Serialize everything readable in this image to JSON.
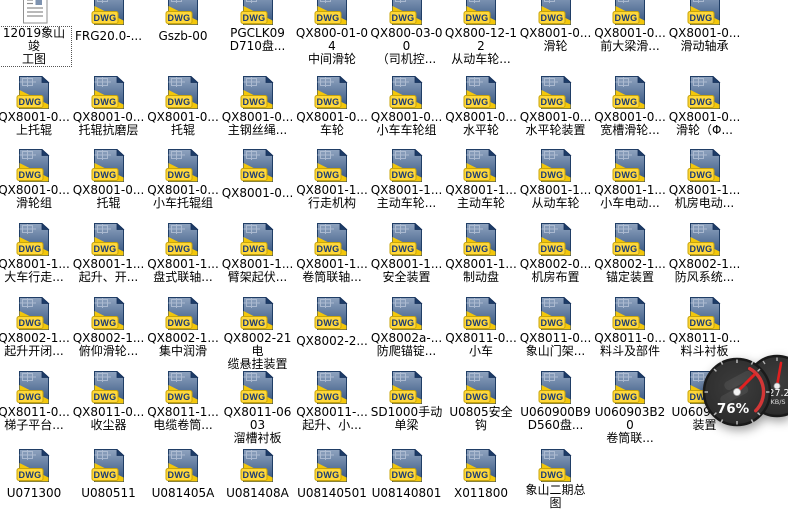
{
  "desktop": {
    "background_color": "#ffffff"
  },
  "icons": {
    "dwg_badge_text": "DWG",
    "dwg_blue_top": "#8fa3bf",
    "dwg_blue_bottom": "#33537f",
    "dwg_yellow": "#f3c70a",
    "dwg_badge_yellow": "#ffd83a",
    "dwg_badge_text_color": "#1b3a74"
  },
  "gauge_widget": {
    "main_percent": "76%",
    "secondary_value": "27.2",
    "secondary_unit": "KB/S",
    "body_color": "#323232",
    "needle_color": "#e02020",
    "arc_color": "#d43636"
  },
  "files": [
    {
      "label": "12019象山竣\n工图",
      "icon": "doc",
      "selected": true
    },
    {
      "label": "FRG20.0-...",
      "icon": "dwg"
    },
    {
      "label": "Gszb-00",
      "icon": "dwg"
    },
    {
      "label": "PGCLK09\nD710盘...",
      "icon": "dwg"
    },
    {
      "label": "QX800-01-04\n中间滑轮",
      "icon": "dwg"
    },
    {
      "label": "QX800-03-00\n（司机控...",
      "icon": "dwg"
    },
    {
      "label": "QX800-12-12\n从动车轮...",
      "icon": "dwg"
    },
    {
      "label": "QX8001-0...\n滑轮",
      "icon": "dwg"
    },
    {
      "label": "QX8001-0...\n前大梁滑...",
      "icon": "dwg"
    },
    {
      "label": "QX8001-0...\n滑动轴承",
      "icon": "dwg"
    },
    {
      "label": "QX8001-0...\n上托辊",
      "icon": "dwg"
    },
    {
      "label": "QX8001-0...\n托辊抗磨层",
      "icon": "dwg"
    },
    {
      "label": "QX8001-0...\n托辊",
      "icon": "dwg"
    },
    {
      "label": "QX8001-0...\n主钢丝绳...",
      "icon": "dwg"
    },
    {
      "label": "QX8001-0...\n车轮",
      "icon": "dwg"
    },
    {
      "label": "QX8001-0...\n小车车轮组",
      "icon": "dwg"
    },
    {
      "label": "QX8001-0...\n水平轮",
      "icon": "dwg"
    },
    {
      "label": "QX8001-0...\n水平轮装置",
      "icon": "dwg"
    },
    {
      "label": "QX8001-0...\n宽槽滑轮...",
      "icon": "dwg"
    },
    {
      "label": "QX8001-0...\n滑轮（Φ...",
      "icon": "dwg"
    },
    {
      "label": "QX8001-0...\n滑轮组",
      "icon": "dwg"
    },
    {
      "label": "QX8001-0...\n托辊",
      "icon": "dwg"
    },
    {
      "label": "QX8001-0...\n小车托辊组",
      "icon": "dwg"
    },
    {
      "label": "QX8001-0...",
      "icon": "dwg"
    },
    {
      "label": "QX8001-1...\n行走机构",
      "icon": "dwg"
    },
    {
      "label": "QX8001-1...\n主动车轮...",
      "icon": "dwg"
    },
    {
      "label": "QX8001-1...\n主动车轮",
      "icon": "dwg"
    },
    {
      "label": "QX8001-1...\n从动车轮",
      "icon": "dwg"
    },
    {
      "label": "QX8001-1...\n小车电动...",
      "icon": "dwg"
    },
    {
      "label": "QX8001-1...\n机房电动...",
      "icon": "dwg"
    },
    {
      "label": "QX8001-1...\n大车行走...",
      "icon": "dwg"
    },
    {
      "label": "QX8001-1...\n起升、开...",
      "icon": "dwg"
    },
    {
      "label": "QX8001-1...\n盘式联轴...",
      "icon": "dwg"
    },
    {
      "label": "QX8001-1...\n臂架起伏...",
      "icon": "dwg"
    },
    {
      "label": "QX8001-1...\n卷筒联轴...",
      "icon": "dwg"
    },
    {
      "label": "QX8001-1...\n安全装置",
      "icon": "dwg"
    },
    {
      "label": "QX8001-1...\n制动盘",
      "icon": "dwg"
    },
    {
      "label": "QX8002-0...\n机房布置",
      "icon": "dwg"
    },
    {
      "label": "QX8002-1...\n锚定装置",
      "icon": "dwg"
    },
    {
      "label": "QX8002-1...\n防风系统...",
      "icon": "dwg"
    },
    {
      "label": "QX8002-1...\n起升开闭...",
      "icon": "dwg"
    },
    {
      "label": "QX8002-1...\n俯仰滑轮...",
      "icon": "dwg"
    },
    {
      "label": "QX8002-1...\n集中润滑",
      "icon": "dwg"
    },
    {
      "label": "QX8002-21电\n缆悬挂装置",
      "icon": "dwg"
    },
    {
      "label": "QX8002-2...",
      "icon": "dwg"
    },
    {
      "label": "QX8002a-...\n防爬锚锭...",
      "icon": "dwg"
    },
    {
      "label": "QX8011-0...\n小车",
      "icon": "dwg"
    },
    {
      "label": "QX8011-0...\n象山门架...",
      "icon": "dwg"
    },
    {
      "label": "QX8011-0...\n料斗及部件",
      "icon": "dwg"
    },
    {
      "label": "QX8011-0...\n料斗衬板",
      "icon": "dwg"
    },
    {
      "label": "QX8011-0...\n梯子平台...",
      "icon": "dwg"
    },
    {
      "label": "QX8011-0...\n收尘器",
      "icon": "dwg"
    },
    {
      "label": "QX8011-1...\n电缆卷筒...",
      "icon": "dwg"
    },
    {
      "label": "QX8011-0603\n溜槽衬板",
      "icon": "dwg"
    },
    {
      "label": "QX80011-...\n起升、小...",
      "icon": "dwg"
    },
    {
      "label": "SD1000手动\n单梁",
      "icon": "dwg"
    },
    {
      "label": "U0805安全钩",
      "icon": "dwg"
    },
    {
      "label": "U060900B9\nD560盘...",
      "icon": "dwg"
    },
    {
      "label": "U060903B20\n卷筒联...",
      "icon": "dwg"
    },
    {
      "label": "U060905...\n装置",
      "icon": "dwg"
    },
    {
      "label": "U071300",
      "icon": "dwg"
    },
    {
      "label": "U080511",
      "icon": "dwg"
    },
    {
      "label": "U081405A",
      "icon": "dwg"
    },
    {
      "label": "U081408A",
      "icon": "dwg"
    },
    {
      "label": "U08140501",
      "icon": "dwg"
    },
    {
      "label": "U08140801",
      "icon": "dwg"
    },
    {
      "label": "X011800",
      "icon": "dwg"
    },
    {
      "label": "象山二期总\n图",
      "icon": "dwg"
    }
  ]
}
